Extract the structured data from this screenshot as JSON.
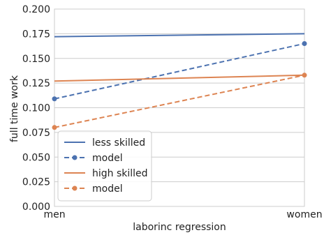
{
  "chart_data": {
    "type": "line",
    "x": [
      "men",
      "women"
    ],
    "xlabel": "laborinc regression",
    "ylabel": "full time work",
    "ylim": [
      0.0,
      0.2
    ],
    "yticks": [
      "0.000",
      "0.025",
      "0.050",
      "0.075",
      "0.100",
      "0.125",
      "0.150",
      "0.175",
      "0.200"
    ],
    "grid": true,
    "legend_position": "lower-left",
    "series": [
      {
        "name": "less skilled",
        "values": [
          0.172,
          0.175
        ],
        "color": "#4c72b0",
        "style": "solid"
      },
      {
        "name": "model",
        "values": [
          0.109,
          0.165
        ],
        "color": "#4c72b0",
        "style": "dashed",
        "marker": "circle"
      },
      {
        "name": "high skilled",
        "values": [
          0.127,
          0.133
        ],
        "color": "#dd8452",
        "style": "solid"
      },
      {
        "name": "model",
        "values": [
          0.08,
          0.133
        ],
        "color": "#dd8452",
        "style": "dashed",
        "marker": "circle"
      }
    ]
  }
}
